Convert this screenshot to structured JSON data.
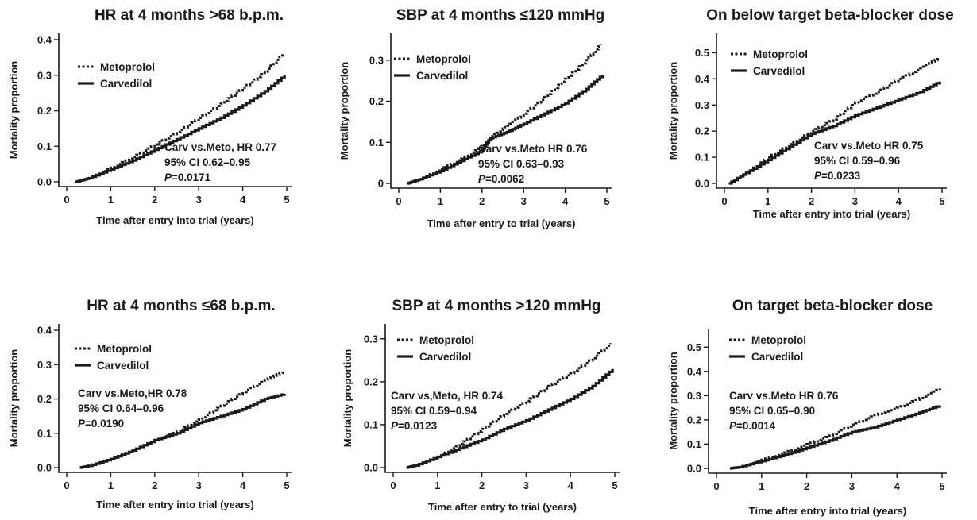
{
  "chart_data": [
    {
      "type": "line",
      "title": "HR at 4 months >68 b.p.m.",
      "xlabel": "Time after entry into trial (years)",
      "ylabel": "Mortality proportion",
      "xlim": [
        0,
        5
      ],
      "ylim": [
        0,
        0.4
      ],
      "xticks": [
        "0",
        "1",
        "2",
        "3",
        "4",
        "5"
      ],
      "yticks": [
        "0.0",
        "0.1",
        "0.2",
        "0.3",
        "0.4"
      ],
      "legend_position": "top-left",
      "series": [
        {
          "name": "Metoprolol",
          "style": "dotted",
          "points": [
            [
              0.2,
              0.0
            ],
            [
              0.5,
              0.01
            ],
            [
              1,
              0.04
            ],
            [
              1.5,
              0.07
            ],
            [
              2,
              0.105
            ],
            [
              2.5,
              0.14
            ],
            [
              3,
              0.18
            ],
            [
              3.5,
              0.22
            ],
            [
              4,
              0.265
            ],
            [
              4.5,
              0.31
            ],
            [
              4.9,
              0.36
            ]
          ]
        },
        {
          "name": "Carvedilol",
          "style": "solid",
          "points": [
            [
              0.2,
              0.0
            ],
            [
              0.5,
              0.01
            ],
            [
              1,
              0.035
            ],
            [
              1.5,
              0.06
            ],
            [
              2,
              0.09
            ],
            [
              2.5,
              0.12
            ],
            [
              3,
              0.15
            ],
            [
              3.5,
              0.18
            ],
            [
              4,
              0.215
            ],
            [
              4.5,
              0.255
            ],
            [
              4.95,
              0.3
            ]
          ]
        }
      ],
      "annotation": [
        "Carv vs.Meto, HR 0.77",
        "95% CI 0.62–0.95",
        "P",
        "=0.0171"
      ]
    },
    {
      "type": "line",
      "title": "SBP at 4 months ≤120 mmHg",
      "xlabel": "Time after entry to trial (years)",
      "ylabel": "Mortality proportion",
      "xlim": [
        0,
        5
      ],
      "ylim": [
        0,
        0.35
      ],
      "xticks": [
        "0",
        "1",
        "2",
        "3",
        "4",
        "5"
      ],
      "yticks": [
        "0",
        "0.1",
        "0.2",
        "0.3"
      ],
      "legend_position": "top-left",
      "series": [
        {
          "name": "Metoprolol",
          "style": "dotted",
          "points": [
            [
              0.2,
              0.0
            ],
            [
              0.5,
              0.01
            ],
            [
              1,
              0.035
            ],
            [
              1.5,
              0.06
            ],
            [
              2,
              0.09
            ],
            [
              2.3,
              0.12
            ],
            [
              2.6,
              0.14
            ],
            [
              3,
              0.17
            ],
            [
              3.5,
              0.21
            ],
            [
              4,
              0.255
            ],
            [
              4.5,
              0.3
            ],
            [
              4.85,
              0.34
            ]
          ]
        },
        {
          "name": "Carvedilol",
          "style": "solid",
          "points": [
            [
              0.2,
              0.0
            ],
            [
              0.5,
              0.01
            ],
            [
              1,
              0.03
            ],
            [
              1.5,
              0.055
            ],
            [
              2,
              0.08
            ],
            [
              2.2,
              0.11
            ],
            [
              2.6,
              0.125
            ],
            [
              3,
              0.145
            ],
            [
              3.5,
              0.17
            ],
            [
              4,
              0.195
            ],
            [
              4.5,
              0.23
            ],
            [
              4.9,
              0.265
            ]
          ]
        }
      ],
      "annotation": [
        "Carv vs.Meto HR 0.76",
        "95% CI 0.63–0.93",
        "P",
        "=0.0062"
      ]
    },
    {
      "type": "line",
      "title": "On below target beta-blocker dose",
      "xlabel": "Time after entry into trial (years)",
      "ylabel": "Mortality proportion",
      "xlim": [
        0,
        5
      ],
      "ylim": [
        0,
        0.55
      ],
      "xticks": [
        "0",
        "1",
        "2",
        "3",
        "4",
        "5"
      ],
      "yticks": [
        "0.0",
        "0.1",
        "0.2",
        "0.3",
        "0.4",
        "0.5"
      ],
      "legend_position": "top-left",
      "series": [
        {
          "name": "Metoprolol",
          "style": "dotted",
          "points": [
            [
              0.1,
              0.0
            ],
            [
              0.5,
              0.04
            ],
            [
              1,
              0.1
            ],
            [
              1.5,
              0.15
            ],
            [
              2,
              0.2
            ],
            [
              2.5,
              0.245
            ],
            [
              3,
              0.31
            ],
            [
              3.5,
              0.35
            ],
            [
              4,
              0.4
            ],
            [
              4.5,
              0.44
            ],
            [
              4.9,
              0.48
            ]
          ]
        },
        {
          "name": "Carvedilol",
          "style": "solid",
          "points": [
            [
              0.1,
              0.0
            ],
            [
              0.5,
              0.04
            ],
            [
              1,
              0.09
            ],
            [
              1.5,
              0.14
            ],
            [
              2,
              0.19
            ],
            [
              2.5,
              0.22
            ],
            [
              3,
              0.26
            ],
            [
              3.5,
              0.29
            ],
            [
              4,
              0.32
            ],
            [
              4.5,
              0.35
            ],
            [
              4.95,
              0.39
            ]
          ]
        }
      ],
      "annotation": [
        "Carv vs.Meto HR 0.75",
        "95% CI 0.59–0.96",
        "P",
        "=0.0233"
      ]
    },
    {
      "type": "line",
      "title": "HR at 4 months ≤68 b.p.m.",
      "xlabel": "Time after entry into trial (years)",
      "ylabel": "Mortality proportion",
      "xlim": [
        0,
        5
      ],
      "ylim": [
        0,
        0.4
      ],
      "xticks": [
        "0",
        "1",
        "2",
        "3",
        "4",
        "5"
      ],
      "yticks": [
        "0.0",
        "0.1",
        "0.2",
        "0.3",
        "0.4"
      ],
      "legend_position": "top-left",
      "series": [
        {
          "name": "Metoprolol",
          "style": "dotted",
          "points": [
            [
              0.3,
              0.0
            ],
            [
              0.5,
              0.005
            ],
            [
              1,
              0.025
            ],
            [
              1.5,
              0.05
            ],
            [
              2,
              0.08
            ],
            [
              2.5,
              0.105
            ],
            [
              3,
              0.14
            ],
            [
              3.5,
              0.18
            ],
            [
              4,
              0.22
            ],
            [
              4.5,
              0.255
            ],
            [
              4.9,
              0.28
            ]
          ]
        },
        {
          "name": "Carvedilol",
          "style": "solid",
          "points": [
            [
              0.3,
              0.0
            ],
            [
              0.5,
              0.005
            ],
            [
              1,
              0.025
            ],
            [
              1.5,
              0.05
            ],
            [
              2,
              0.08
            ],
            [
              2.5,
              0.1
            ],
            [
              3,
              0.13
            ],
            [
              3.5,
              0.15
            ],
            [
              4,
              0.17
            ],
            [
              4.5,
              0.2
            ],
            [
              4.95,
              0.215
            ]
          ]
        }
      ],
      "annotation": [
        "Carv vs.Meto,HR 0.78",
        "95% CI 0.64–0.96",
        "P",
        "=0.0190"
      ]
    },
    {
      "type": "line",
      "title": "SBP at 4 months >120 mmHg",
      "xlabel": "Time after entry to trial (years)",
      "ylabel": "Mortality proportion",
      "xlim": [
        0,
        5
      ],
      "ylim": [
        0,
        0.32
      ],
      "xticks": [
        "0",
        "1",
        "2",
        "3",
        "4",
        "5"
      ],
      "yticks": [
        "0.0",
        "0.1",
        "0.2",
        "0.3"
      ],
      "legend_position": "top-left",
      "series": [
        {
          "name": "Metoprolol",
          "style": "dotted",
          "points": [
            [
              0.3,
              0.0
            ],
            [
              0.5,
              0.005
            ],
            [
              1,
              0.025
            ],
            [
              1.5,
              0.055
            ],
            [
              2,
              0.09
            ],
            [
              2.5,
              0.125
            ],
            [
              3,
              0.155
            ],
            [
              3.5,
              0.19
            ],
            [
              4,
              0.22
            ],
            [
              4.5,
              0.255
            ],
            [
              4.9,
              0.29
            ]
          ]
        },
        {
          "name": "Carvedilol",
          "style": "solid",
          "points": [
            [
              0.3,
              0.0
            ],
            [
              0.5,
              0.005
            ],
            [
              1,
              0.025
            ],
            [
              1.5,
              0.045
            ],
            [
              2,
              0.065
            ],
            [
              2.5,
              0.09
            ],
            [
              3,
              0.11
            ],
            [
              3.5,
              0.135
            ],
            [
              4,
              0.16
            ],
            [
              4.5,
              0.19
            ],
            [
              4.95,
              0.23
            ]
          ]
        }
      ],
      "annotation": [
        "Carv vs,Meto, HR 0.74",
        "95% CI 0.59–0.94",
        "P",
        "=0.0123"
      ]
    },
    {
      "type": "line",
      "title": "On target beta-blocker dose",
      "xlabel": "Time after entry into trial (years)",
      "ylabel": "Mortality proportion",
      "xlim": [
        0,
        5
      ],
      "ylim": [
        0,
        0.55
      ],
      "xticks": [
        "0",
        "1",
        "2",
        "3",
        "4",
        "5"
      ],
      "yticks": [
        "0.0",
        "0.1",
        "0.2",
        "0.3",
        "0.4",
        "0.5"
      ],
      "legend_position": "top-left",
      "series": [
        {
          "name": "Metoprolol",
          "style": "dotted",
          "points": [
            [
              0.3,
              0.0
            ],
            [
              0.5,
              0.005
            ],
            [
              1,
              0.035
            ],
            [
              1.5,
              0.065
            ],
            [
              2,
              0.1
            ],
            [
              2.5,
              0.135
            ],
            [
              3,
              0.18
            ],
            [
              3.5,
              0.22
            ],
            [
              4,
              0.25
            ],
            [
              4.5,
              0.29
            ],
            [
              4.95,
              0.33
            ]
          ]
        },
        {
          "name": "Carvedilol",
          "style": "solid",
          "points": [
            [
              0.3,
              0.0
            ],
            [
              0.5,
              0.005
            ],
            [
              1,
              0.03
            ],
            [
              1.5,
              0.055
            ],
            [
              2,
              0.085
            ],
            [
              2.5,
              0.115
            ],
            [
              3,
              0.15
            ],
            [
              3.5,
              0.17
            ],
            [
              4,
              0.2
            ],
            [
              4.5,
              0.23
            ],
            [
              4.95,
              0.26
            ]
          ]
        }
      ],
      "annotation": [
        "Carv vs.Meto HR 0.76",
        "95% CI 0.65–0.90",
        "P",
        "=0.0014"
      ]
    }
  ]
}
